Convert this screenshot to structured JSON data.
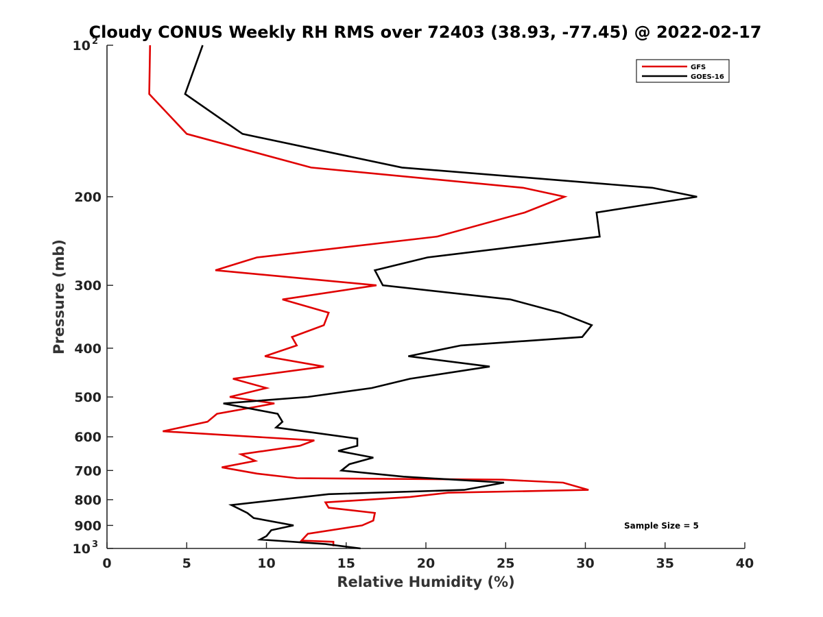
{
  "chart_data": {
    "type": "line",
    "title": "Cloudy CONUS Weekly RH RMS over 72403 (38.93, -77.45) @ 2022-02-17",
    "xlabel": "Relative Humidity (%)",
    "ylabel": "Pressure (mb)",
    "xlim": [
      0,
      40
    ],
    "ylim": [
      100,
      1000
    ],
    "y_scale": "log",
    "y_reversed": true,
    "grid": false,
    "legend_position": "top-right",
    "x_ticks": [
      "0",
      "5",
      "10",
      "15",
      "20",
      "25",
      "30",
      "35",
      "40"
    ],
    "y_ticks": [
      {
        "value": 100,
        "label": "10",
        "sup": "2"
      },
      {
        "value": 200,
        "label": "200",
        "sup": ""
      },
      {
        "value": 300,
        "label": "300",
        "sup": ""
      },
      {
        "value": 400,
        "label": "400",
        "sup": ""
      },
      {
        "value": 500,
        "label": "500",
        "sup": ""
      },
      {
        "value": 600,
        "label": "600",
        "sup": ""
      },
      {
        "value": 700,
        "label": "700",
        "sup": ""
      },
      {
        "value": 800,
        "label": "800",
        "sup": ""
      },
      {
        "value": 900,
        "label": "900",
        "sup": ""
      },
      {
        "value": 1000,
        "label": "10",
        "sup": "3"
      }
    ],
    "annotation": "Sample Size = 5",
    "series": [
      {
        "name": "GFS",
        "color": "#e00000",
        "points": [
          [
            2.7,
            100
          ],
          [
            2.65,
            125
          ],
          [
            5.0,
            150
          ],
          [
            12.8,
            175
          ],
          [
            26.1,
            192
          ],
          [
            28.7,
            200
          ],
          [
            26.2,
            215
          ],
          [
            20.7,
            240
          ],
          [
            9.4,
            264
          ],
          [
            6.8,
            280
          ],
          [
            16.9,
            300
          ],
          [
            11.0,
            320
          ],
          [
            13.9,
            340
          ],
          [
            13.6,
            360
          ],
          [
            11.6,
            380
          ],
          [
            11.9,
            395
          ],
          [
            9.9,
            415
          ],
          [
            13.6,
            435
          ],
          [
            7.9,
            460
          ],
          [
            10.0,
            480
          ],
          [
            7.7,
            500
          ],
          [
            10.5,
            515
          ],
          [
            6.9,
            540
          ],
          [
            6.3,
            560
          ],
          [
            3.5,
            585
          ],
          [
            13.0,
            610
          ],
          [
            12.1,
            625
          ],
          [
            8.4,
            650
          ],
          [
            9.3,
            670
          ],
          [
            7.2,
            690
          ],
          [
            9.4,
            710
          ],
          [
            11.9,
            725
          ],
          [
            24.8,
            730
          ],
          [
            28.6,
            740
          ],
          [
            30.2,
            765
          ],
          [
            21.4,
            775
          ],
          [
            19.0,
            790
          ],
          [
            13.7,
            810
          ],
          [
            13.9,
            830
          ],
          [
            16.8,
            850
          ],
          [
            16.7,
            880
          ],
          [
            16.0,
            900
          ],
          [
            12.6,
            935
          ],
          [
            12.2,
            965
          ],
          [
            14.2,
            970
          ],
          [
            14.2,
            990
          ]
        ]
      },
      {
        "name": "GOES-16",
        "color": "#000000",
        "points": [
          [
            6.0,
            100
          ],
          [
            4.9,
            125
          ],
          [
            8.5,
            150
          ],
          [
            18.5,
            175
          ],
          [
            34.2,
            192
          ],
          [
            37.0,
            200
          ],
          [
            30.7,
            215
          ],
          [
            30.9,
            240
          ],
          [
            20.1,
            264
          ],
          [
            16.8,
            280
          ],
          [
            17.3,
            300
          ],
          [
            25.3,
            320
          ],
          [
            28.4,
            340
          ],
          [
            30.4,
            360
          ],
          [
            29.8,
            380
          ],
          [
            22.2,
            395
          ],
          [
            18.9,
            415
          ],
          [
            24.0,
            435
          ],
          [
            19.0,
            460
          ],
          [
            16.6,
            480
          ],
          [
            12.6,
            500
          ],
          [
            7.3,
            515
          ],
          [
            10.7,
            540
          ],
          [
            11.0,
            560
          ],
          [
            10.6,
            575
          ],
          [
            15.7,
            605
          ],
          [
            15.7,
            625
          ],
          [
            14.5,
            640
          ],
          [
            16.7,
            660
          ],
          [
            15.2,
            680
          ],
          [
            14.7,
            700
          ],
          [
            18.6,
            720
          ],
          [
            24.9,
            740
          ],
          [
            22.4,
            765
          ],
          [
            13.9,
            780
          ],
          [
            7.8,
            820
          ],
          [
            8.8,
            850
          ],
          [
            9.2,
            870
          ],
          [
            11.7,
            900
          ],
          [
            10.3,
            920
          ],
          [
            10.0,
            945
          ],
          [
            9.6,
            960
          ],
          [
            13.7,
            980
          ],
          [
            15.9,
            1000
          ]
        ]
      }
    ]
  }
}
